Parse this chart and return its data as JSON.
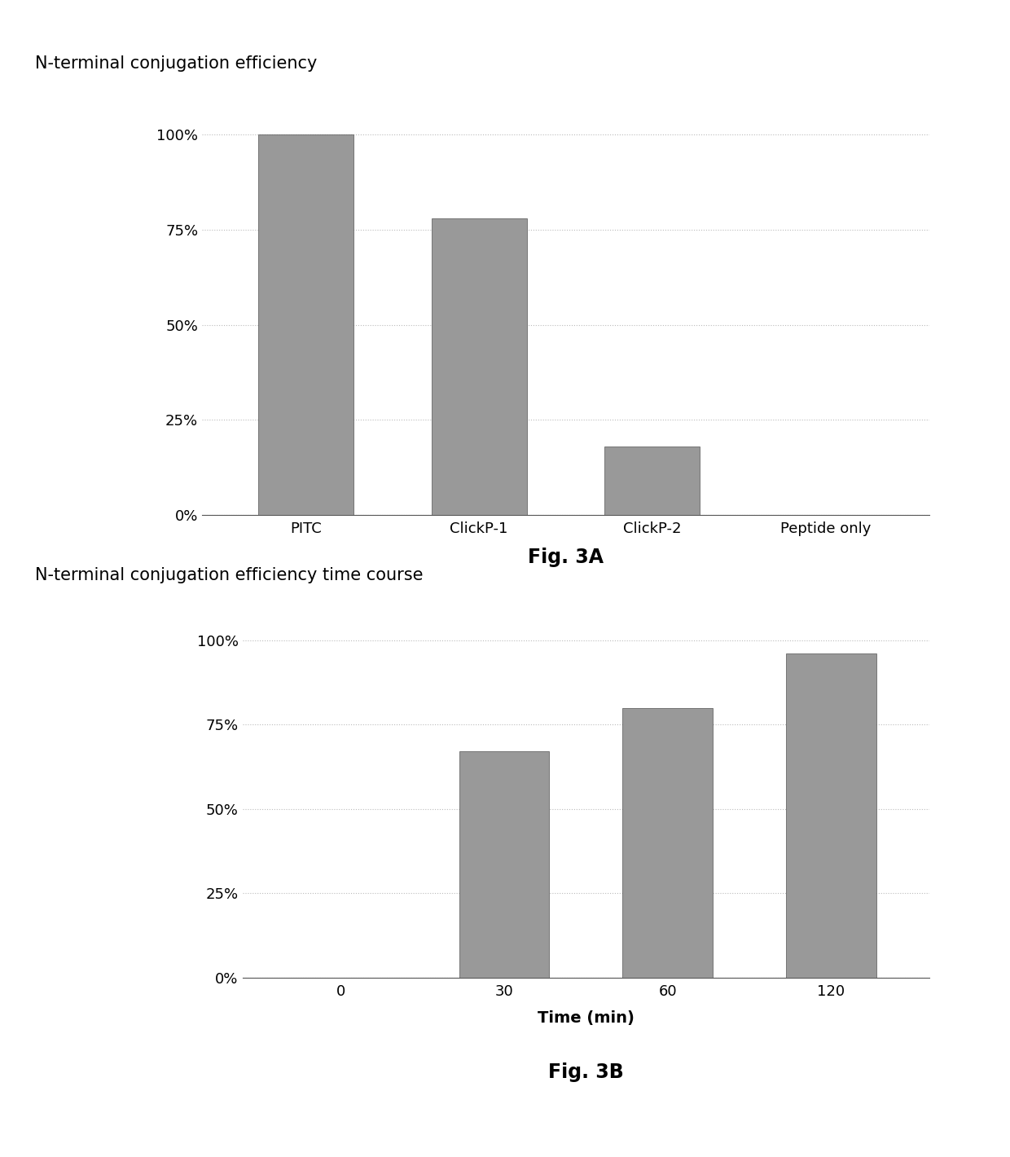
{
  "fig3a": {
    "title": "N-terminal conjugation efficiency",
    "categories": [
      "PITC",
      "ClickP-1",
      "ClickP-2",
      "Peptide only"
    ],
    "values": [
      1.0,
      0.78,
      0.18,
      0.0
    ],
    "ylabel_ticks": [
      0,
      0.25,
      0.5,
      0.75,
      1.0
    ],
    "ylabel_labels": [
      "0%",
      "25%",
      "50%",
      "75%",
      "100%"
    ],
    "ylim": [
      0,
      1.08
    ],
    "caption": "Fig. 3A"
  },
  "fig3b": {
    "title": "N-terminal conjugation efficiency time course",
    "categories": [
      "0",
      "30",
      "60",
      "120"
    ],
    "values": [
      0.0,
      0.67,
      0.8,
      0.96
    ],
    "ylabel_ticks": [
      0,
      0.25,
      0.5,
      0.75,
      1.0
    ],
    "ylabel_labels": [
      "0%",
      "25%",
      "50%",
      "75%",
      "100%"
    ],
    "ylim": [
      0,
      1.08
    ],
    "xlabel": "Time (min)",
    "caption": "Fig. 3B"
  },
  "background_color": "#ffffff",
  "bar_color": "#999999",
  "bar_edgecolor": "#555555",
  "grid_color": "#bbbbbb",
  "title_fontsize": 15,
  "caption_fontsize": 17,
  "tick_fontsize": 13,
  "xlabel_fontsize": 14,
  "bar_width": 0.55
}
